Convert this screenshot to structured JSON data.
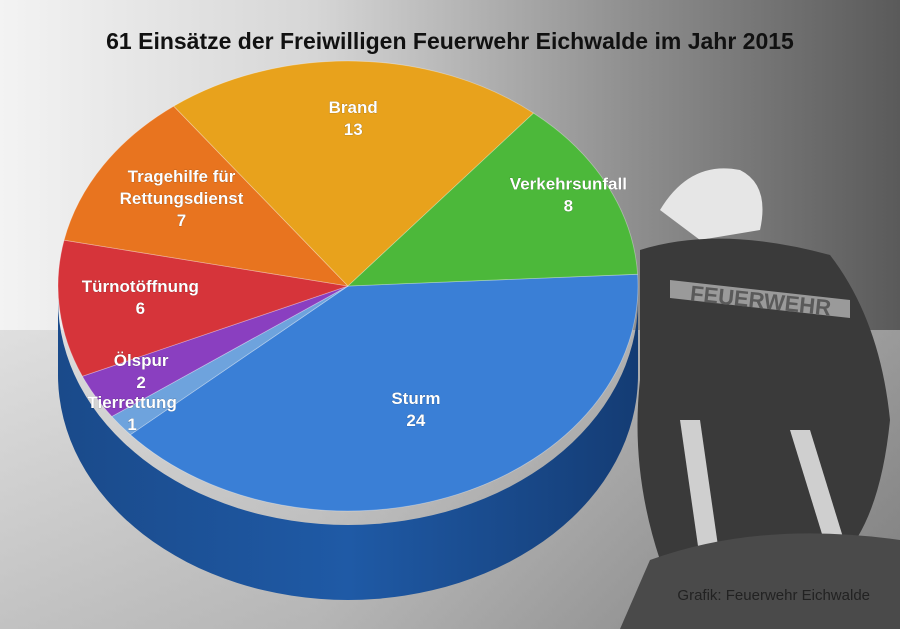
{
  "chart_data": {
    "type": "pie",
    "title": "61 Einsätze der Freiwilligen Feuerwehr Eichwalde im Jahr 2015",
    "slices": [
      {
        "label": "Sturm",
        "value": 24,
        "color": "#3a7fd6"
      },
      {
        "label": "Tierrettung",
        "value": 1,
        "color": "#6ea3dd"
      },
      {
        "label": "Ölspur",
        "value": 2,
        "color": "#8a3fc0"
      },
      {
        "label": "Türnotöffnung",
        "value": 6,
        "color": "#d6343a"
      },
      {
        "label": "Tragehilfe für Rettungsdienst",
        "value": 7,
        "color": "#e8741f"
      },
      {
        "label": "Brand",
        "value": 13,
        "color": "#e8a21c"
      },
      {
        "label": "Verkehrsunfall",
        "value": 8,
        "color": "#4cb83a"
      }
    ]
  },
  "background_image_text": "FEUERWEHR",
  "credit": "Grafik: Feuerwehr Eichwalde"
}
